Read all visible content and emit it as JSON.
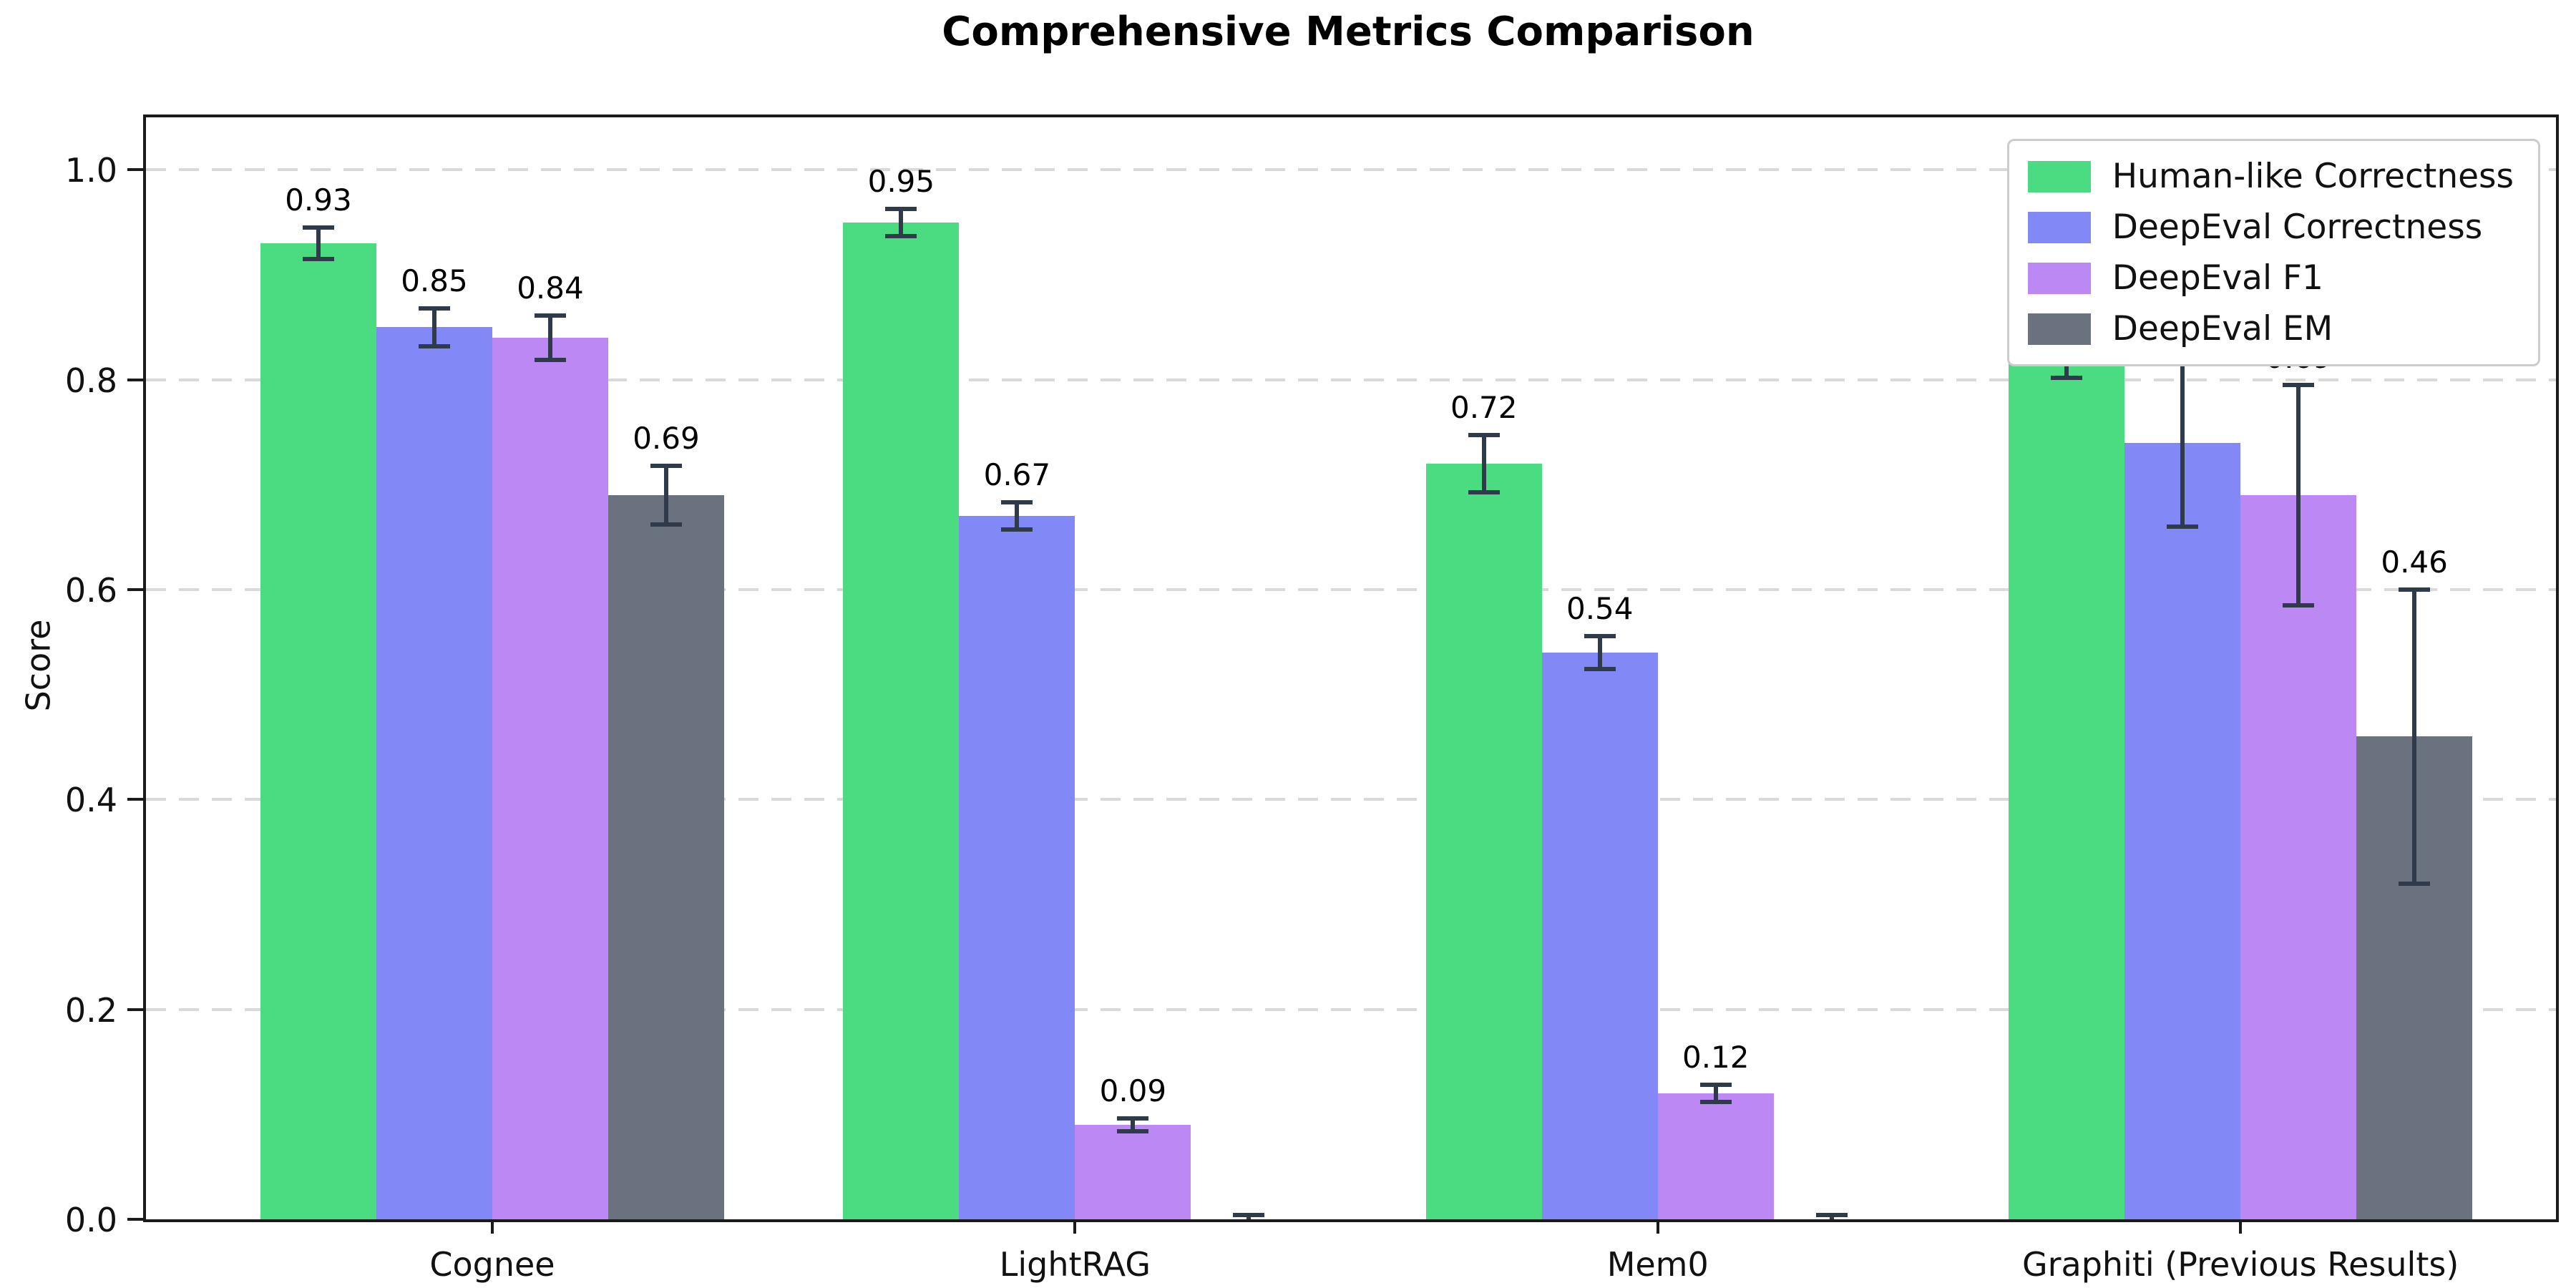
{
  "chart_data": {
    "type": "bar",
    "title": "Comprehensive Metrics Comparison",
    "ylabel": "Score",
    "categories": [
      "Cognee",
      "LightRAG",
      "Mem0",
      "Graphiti (Previous Results)"
    ],
    "series": [
      {
        "name": "Human-like Correctness",
        "color": "#4BDC82",
        "values": [
          0.93,
          0.95,
          0.72,
          0.88
        ],
        "errors": [
          0.015,
          0.013,
          0.027,
          0.078
        ],
        "labels": [
          "0.93",
          "0.95",
          "0.72",
          "0.88"
        ]
      },
      {
        "name": "DeepEval Correctness",
        "color": "#8289F6",
        "values": [
          0.85,
          0.67,
          0.54,
          0.74
        ],
        "errors": [
          0.018,
          0.013,
          0.016,
          0.08
        ],
        "labels": [
          "0.85",
          "0.67",
          "0.54",
          "0.74"
        ]
      },
      {
        "name": "DeepEval F1",
        "color": "#BC88F3",
        "values": [
          0.84,
          0.09,
          0.12,
          0.69
        ],
        "errors": [
          0.021,
          0.006,
          0.008,
          0.105
        ],
        "labels": [
          "0.84",
          "0.09",
          "0.12",
          "0.69"
        ]
      },
      {
        "name": "DeepEval EM",
        "color": "#6A7280",
        "values": [
          0.69,
          0.0,
          0.0,
          0.46
        ],
        "errors": [
          0.028,
          0.004,
          0.004,
          0.14
        ],
        "labels": [
          "0.69",
          null,
          null,
          "0.46"
        ]
      }
    ],
    "yticks": [
      0.0,
      0.2,
      0.4,
      0.6,
      0.8,
      1.0
    ],
    "ytick_labels": [
      "0.0",
      "0.2",
      "0.4",
      "0.6",
      "0.8",
      "1.0"
    ],
    "ylim": [
      0,
      1.05
    ],
    "grid": "horizontal-dashed",
    "legend_position": "upper-right",
    "error_bar_color": "#2F3A4A",
    "grid_color": "#D9D9D9",
    "axis_color": "#1A1A1A"
  }
}
